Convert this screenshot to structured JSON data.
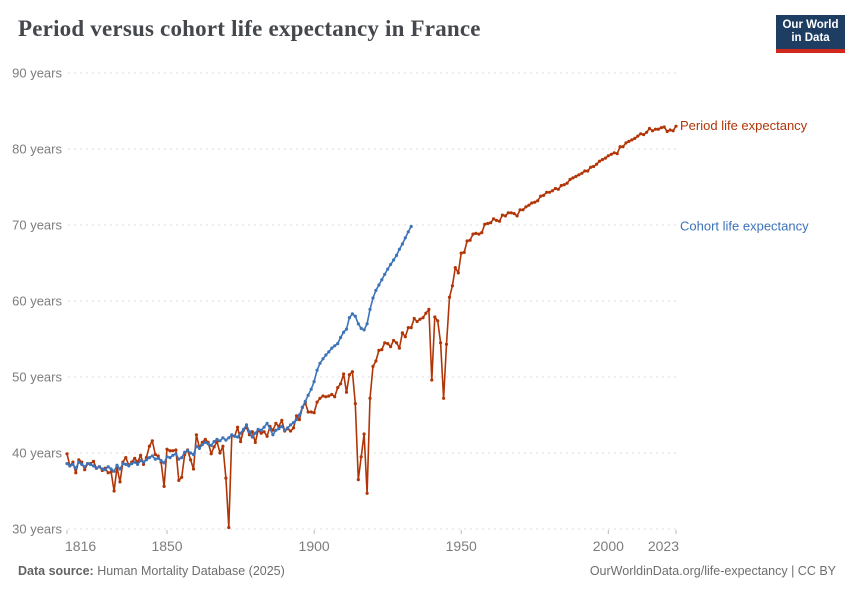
{
  "header": {
    "title": "Period versus cohort life expectancy in France",
    "logo": {
      "line1": "Our World",
      "line2": "in Data",
      "bg": "#1d3d63",
      "bar": "#d0281c"
    }
  },
  "footer": {
    "source_label": "Data source:",
    "source_value": " Human Mortality Database (2025)",
    "link": "OurWorldinData.org/life-expectancy | CC BY"
  },
  "chart_data": {
    "type": "line",
    "title": "Period versus cohort life expectancy in France",
    "xlabel": "",
    "ylabel": "",
    "xlim": [
      1816,
      2023
    ],
    "ylim": [
      30,
      90
    ],
    "x_ticks": [
      1816,
      1850,
      1900,
      1950,
      2000,
      2023
    ],
    "y_ticks": [
      30,
      40,
      50,
      60,
      70,
      80,
      90
    ],
    "y_tick_suffix": " years",
    "grid": "dashed-horizontal",
    "grid_color": "#dedede",
    "tick_color": "#bbbbbb",
    "axis_text_color": "#7d7d7d",
    "legend_position": "right-edge-labels",
    "series": [
      {
        "name": "Period life expectancy",
        "color": "#b13507",
        "start_year": 1816,
        "values": [
          39.9,
          38.3,
          38.8,
          37.4,
          39.1,
          38.8,
          37.8,
          38.6,
          38.6,
          38.9,
          38.0,
          38.2,
          37.7,
          38.0,
          37.4,
          37.5,
          35.0,
          38.1,
          36.2,
          38.8,
          39.4,
          38.4,
          38.8,
          39.3,
          38.8,
          39.7,
          38.5,
          39.4,
          40.9,
          41.6,
          39.8,
          39.6,
          38.8,
          35.6,
          40.5,
          40.3,
          40.3,
          40.4,
          36.4,
          36.8,
          39.8,
          40.4,
          39.1,
          37.9,
          42.4,
          40.7,
          41.4,
          41.8,
          41.4,
          39.9,
          40.8,
          41.5,
          40.0,
          40.9,
          36.7,
          30.2,
          42.3,
          42.2,
          43.4,
          41.5,
          43.0,
          43.4,
          42.4,
          42.8,
          41.4,
          43.0,
          42.6,
          42.8,
          42.2,
          43.5,
          43.0,
          43.9,
          43.5,
          44.3,
          42.9,
          43.2,
          42.9,
          43.3,
          44.9,
          44.4,
          46.0,
          46.6,
          45.4,
          45.4,
          45.3,
          46.7,
          47.2,
          47.5,
          47.4,
          47.5,
          47.7,
          47.4,
          48.6,
          49.1,
          50.4,
          48.0,
          50.3,
          50.7,
          46.5,
          36.5,
          39.5,
          42.5,
          34.7,
          47.2,
          51.4,
          52.1,
          53.5,
          53.6,
          54.5,
          54.4,
          54.0,
          54.8,
          54.5,
          53.8,
          55.8,
          55.3,
          56.5,
          56.5,
          57.7,
          57.3,
          57.6,
          57.8,
          58.4,
          58.9,
          49.6,
          57.9,
          57.4,
          54.5,
          47.2,
          54.3,
          60.5,
          62.0,
          64.4,
          63.7,
          66.3,
          66.4,
          67.9,
          68.0,
          68.8,
          68.9,
          68.8,
          69.0,
          70.1,
          70.2,
          70.3,
          70.8,
          70.6,
          70.5,
          71.3,
          71.2,
          71.6,
          71.6,
          71.5,
          71.2,
          72.0,
          72.0,
          72.4,
          72.6,
          72.9,
          73.0,
          73.2,
          73.8,
          73.9,
          74.3,
          74.3,
          74.5,
          74.8,
          74.7,
          75.2,
          75.3,
          75.5,
          76.0,
          76.2,
          76.4,
          76.6,
          76.8,
          77.1,
          77.1,
          77.6,
          77.7,
          78.0,
          78.4,
          78.6,
          78.8,
          79.1,
          79.3,
          79.5,
          79.4,
          80.3,
          80.3,
          80.8,
          81.0,
          81.2,
          81.4,
          81.7,
          82.0,
          81.9,
          82.2,
          82.7,
          82.4,
          82.6,
          82.6,
          82.8,
          82.9,
          82.3,
          82.5,
          82.4,
          83.0
        ]
      },
      {
        "name": "Cohort life expectancy",
        "color": "#3d73b8",
        "start_year": 1816,
        "values": [
          38.6,
          38.3,
          38.5,
          38.0,
          38.8,
          38.5,
          38.2,
          38.6,
          38.5,
          38.3,
          38.0,
          38.2,
          37.9,
          37.8,
          38.2,
          37.9,
          37.6,
          38.4,
          37.9,
          38.6,
          38.5,
          38.3,
          38.6,
          38.8,
          38.5,
          39.0,
          38.8,
          39.1,
          39.4,
          39.6,
          39.2,
          39.3,
          39.0,
          38.7,
          39.5,
          39.4,
          39.7,
          39.9,
          39.2,
          39.4,
          40.1,
          40.3,
          40.0,
          39.8,
          40.9,
          40.6,
          41.1,
          41.4,
          41.2,
          41.0,
          41.5,
          41.8,
          41.6,
          42.0,
          41.7,
          42.0,
          42.4,
          42.2,
          42.1,
          42.6,
          43.1,
          43.7,
          42.8,
          42.1,
          42.6,
          43.1,
          43.0,
          43.4,
          43.9,
          43.2,
          42.4,
          43.0,
          43.2,
          43.5,
          43.0,
          43.3,
          43.7,
          44.0,
          44.4,
          45.0,
          46.0,
          46.8,
          47.6,
          48.4,
          49.4,
          50.9,
          51.8,
          52.4,
          52.9,
          53.3,
          53.8,
          54.1,
          54.4,
          55.2,
          55.9,
          56.3,
          57.8,
          58.3,
          58.0,
          57.0,
          56.4,
          56.2,
          57.0,
          58.9,
          60.4,
          61.4,
          62.1,
          62.8,
          63.5,
          64.2,
          64.8,
          65.4,
          66.0,
          66.8,
          67.5,
          68.3,
          69.1,
          69.8
        ]
      }
    ]
  }
}
